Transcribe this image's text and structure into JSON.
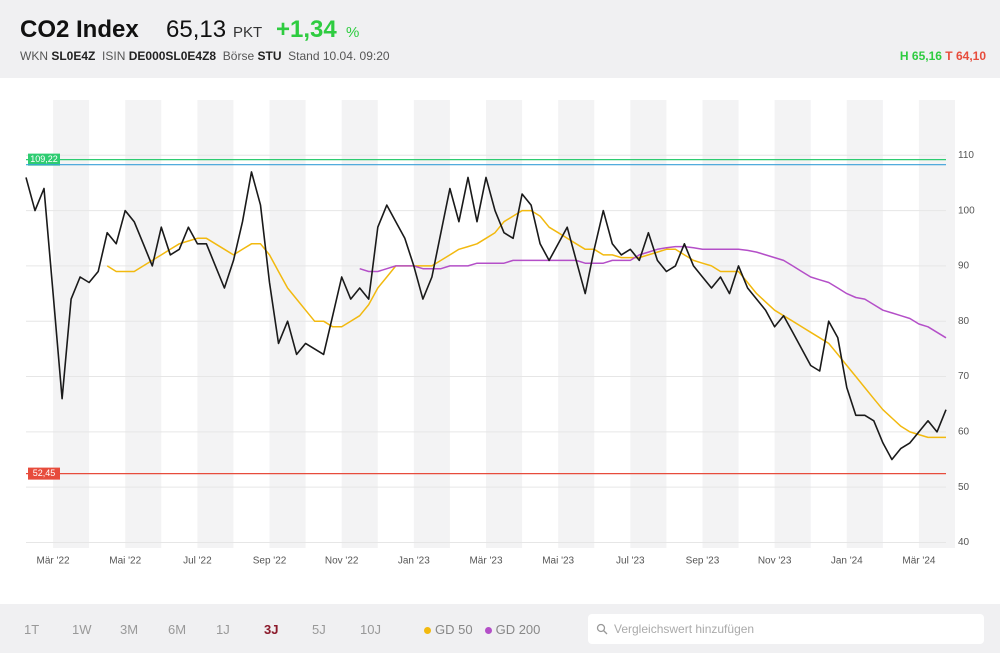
{
  "header": {
    "title": "CO2 Index",
    "price": "65,13",
    "unit": "PKT",
    "change": "+1,34",
    "change_unit": "%",
    "wkn_label": "WKN",
    "wkn": "SL0E4Z",
    "isin_label": "ISIN",
    "isin": "DE000SL0E4Z8",
    "exchange_label": "Börse",
    "exchange": "STU",
    "stand": "Stand 10.04. 09:20",
    "high_label": "H",
    "high": "65,16",
    "low_label": "T",
    "low": "64,10"
  },
  "controls": {
    "periods": [
      "1T",
      "1W",
      "3M",
      "6M",
      "1J",
      "3J",
      "5J",
      "10J"
    ],
    "selected_period": "3J",
    "search_placeholder": "Vergleichswert hinzufügen"
  },
  "chart_data": {
    "type": "line",
    "categories": [
      null,
      null,
      null,
      "Mär '22",
      null,
      null,
      null,
      null,
      null,
      null,
      null,
      "Mai '22",
      null,
      null,
      null,
      null,
      null,
      null,
      null,
      "Jul '22",
      null,
      null,
      null,
      null,
      null,
      null,
      null,
      "Sep '22",
      null,
      null,
      null,
      null,
      null,
      null,
      null,
      "Nov '22",
      null,
      null,
      null,
      null,
      null,
      null,
      null,
      "Jan '23",
      null,
      null,
      null,
      null,
      null,
      null,
      null,
      "Mär '23",
      null,
      null,
      null,
      null,
      null,
      null,
      null,
      "Mai '23",
      null,
      null,
      null,
      null,
      null,
      null,
      null,
      "Jul '23",
      null,
      null,
      null,
      null,
      null,
      null,
      null,
      "Sep '23",
      null,
      null,
      null,
      null,
      null,
      null,
      null,
      "Nov '23",
      null,
      null,
      null,
      null,
      null,
      null,
      null,
      "Jan '24",
      null,
      null,
      null,
      null,
      null,
      null,
      null,
      "Mär '24",
      null,
      null,
      null
    ],
    "series": [
      {
        "color": "#1a1a1a",
        "values": [
          106,
          100,
          104,
          85,
          66,
          84,
          88,
          87,
          89,
          96,
          94,
          100,
          98,
          94,
          90,
          97,
          92,
          93,
          97,
          94,
          94,
          90,
          86,
          91,
          98,
          107,
          101,
          87,
          76,
          80,
          74,
          76,
          75,
          74,
          81,
          88,
          84,
          86,
          84,
          97,
          101,
          98,
          95,
          90,
          84,
          88,
          96,
          104,
          98,
          106,
          98,
          106,
          100,
          96,
          95,
          103,
          101,
          94,
          91,
          94,
          97,
          91,
          85,
          93,
          100,
          94,
          92,
          93,
          91,
          96,
          91,
          89,
          90,
          94,
          90,
          88,
          86,
          88,
          85,
          90,
          86,
          84,
          82,
          79,
          81,
          78,
          75,
          72,
          71,
          80,
          77,
          68,
          63,
          63,
          62,
          58,
          55,
          57,
          58,
          60,
          62,
          60,
          64
        ]
      },
      {
        "name": "GD 50",
        "color": "#f2b90f",
        "values": [
          null,
          null,
          null,
          null,
          null,
          null,
          null,
          null,
          null,
          90,
          89,
          89,
          89,
          90,
          91,
          92,
          93,
          94,
          94.5,
          95,
          95,
          94,
          93,
          92,
          93,
          94,
          94,
          92,
          89,
          86,
          84,
          82,
          80,
          80,
          79,
          79,
          80,
          81,
          83,
          86,
          88,
          90,
          90,
          90,
          90,
          90,
          91,
          92,
          93,
          93.5,
          94,
          95,
          96,
          98,
          99,
          100,
          100,
          99,
          97,
          96,
          95,
          94,
          93,
          93,
          92,
          92,
          91.5,
          91.5,
          91.5,
          92,
          92.5,
          93,
          93,
          92,
          91,
          90.5,
          90,
          89,
          89,
          89,
          87,
          85,
          83.5,
          82,
          81,
          80,
          79,
          78,
          77,
          76,
          74,
          72,
          70,
          68,
          66,
          64,
          62.5,
          61,
          60,
          59.5,
          59,
          59,
          59
        ]
      },
      {
        "name": "GD 200",
        "color": "#b44fc8",
        "values": [
          null,
          null,
          null,
          null,
          null,
          null,
          null,
          null,
          null,
          null,
          null,
          null,
          null,
          null,
          null,
          null,
          null,
          null,
          null,
          null,
          null,
          null,
          null,
          null,
          null,
          null,
          null,
          null,
          null,
          null,
          null,
          null,
          null,
          null,
          null,
          null,
          null,
          89.5,
          89,
          89,
          89.5,
          90,
          90,
          90,
          89.5,
          89.5,
          89.5,
          90,
          90,
          90,
          90.5,
          90.5,
          90.5,
          90.5,
          91,
          91,
          91,
          91,
          91,
          91,
          91,
          91,
          90.5,
          90.5,
          90.5,
          91,
          91,
          91,
          92,
          92.5,
          93,
          93.3,
          93.5,
          93.5,
          93.3,
          93,
          93,
          93,
          93,
          93,
          92.8,
          92.5,
          92,
          91.5,
          91,
          90,
          89,
          88,
          87.5,
          87,
          86,
          85,
          84.3,
          84,
          83,
          82,
          81.5,
          81,
          80.5,
          79.5,
          79,
          78,
          77
        ]
      }
    ],
    "levels": [
      {
        "value": 109.22,
        "label": "109,22",
        "color": "#2ecc71"
      },
      {
        "value": 108.3,
        "color": "#3aa0d8"
      },
      {
        "value": 52.45,
        "label": "52,45",
        "color": "#e74c3c"
      }
    ],
    "ylim": [
      39,
      120
    ],
    "yticks": [
      40,
      50,
      60,
      70,
      80,
      90,
      100,
      110
    ],
    "grid": true
  }
}
